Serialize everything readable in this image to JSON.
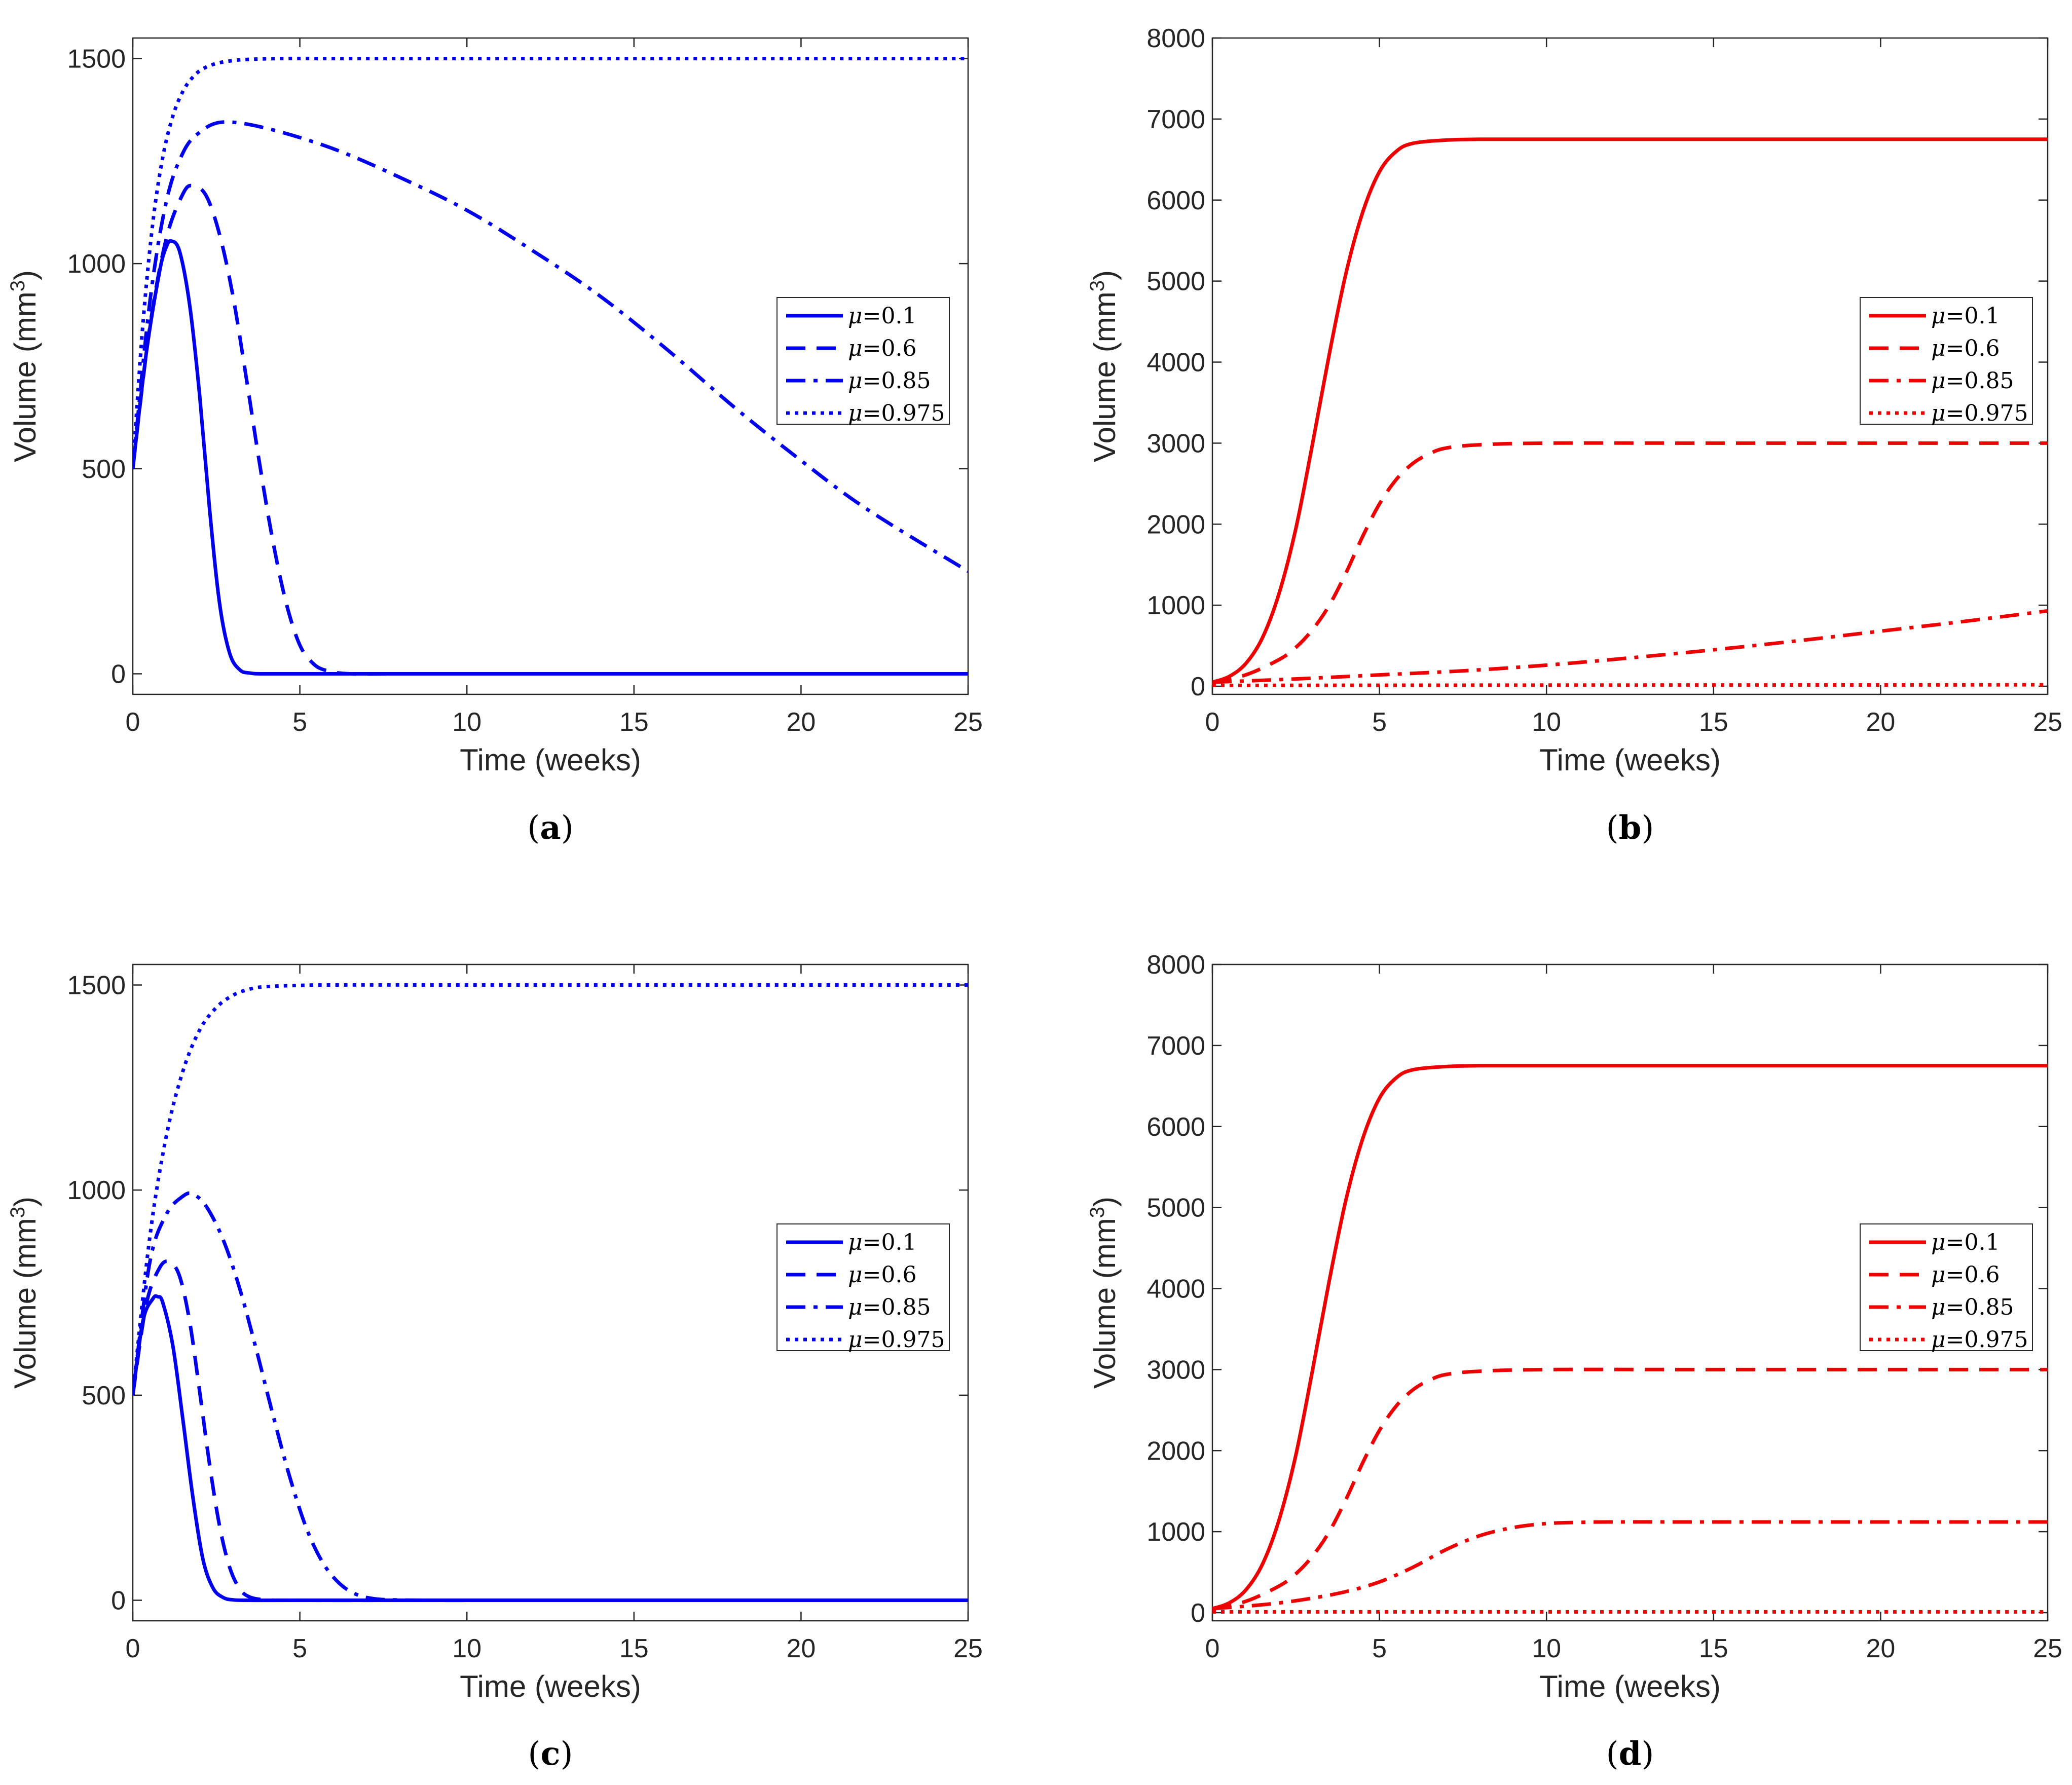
{
  "chart_data": [
    {
      "id": "a",
      "type": "line",
      "panel_label": "a",
      "color": "#0000ee",
      "xlabel": "Time (weeks)",
      "ylabel": "Volume (mm",
      "ylabel_sup": "3",
      "ylabel_end": ")",
      "xlim": [
        0,
        25
      ],
      "ylim": [
        -50,
        1550
      ],
      "xticks": [
        0,
        5,
        10,
        15,
        20,
        25
      ],
      "yticks": [
        0,
        500,
        1000,
        1500
      ],
      "grid": false,
      "legend_position": "right",
      "series": [
        {
          "name": "μ=0.1",
          "symbol": "μ",
          "label": "=0.1",
          "style": "solid",
          "x": [
            0,
            0.4,
            0.8,
            1.0,
            1.15,
            1.4,
            1.7,
            2.0,
            2.3,
            2.6,
            2.9,
            3.2,
            3.5,
            4.0,
            6,
            10,
            15,
            20,
            25
          ],
          "y": [
            500,
            780,
            980,
            1040,
            1055,
            1030,
            900,
            680,
            400,
            170,
            50,
            10,
            2,
            0,
            0,
            0,
            0,
            0,
            0
          ]
        },
        {
          "name": "μ=0.6",
          "symbol": "μ",
          "label": "=0.6",
          "style": "dashed",
          "x": [
            0,
            0.5,
            1.0,
            1.5,
            1.8,
            2.2,
            2.6,
            3.0,
            3.4,
            3.8,
            4.2,
            4.6,
            5.0,
            5.4,
            5.8,
            6.5,
            8,
            12,
            25
          ],
          "y": [
            500,
            840,
            1060,
            1170,
            1190,
            1165,
            1070,
            920,
            720,
            510,
            320,
            170,
            70,
            25,
            8,
            0,
            0,
            0,
            0
          ]
        },
        {
          "name": "μ=0.85",
          "symbol": "μ",
          "label": "=0.85",
          "style": "dashdot",
          "x": [
            0,
            0.5,
            1.0,
            1.5,
            2.0,
            2.7,
            4,
            6,
            8,
            10,
            12,
            14,
            16,
            18,
            20,
            22,
            25
          ],
          "y": [
            500,
            900,
            1150,
            1270,
            1320,
            1345,
            1330,
            1280,
            1210,
            1130,
            1030,
            920,
            790,
            650,
            520,
            400,
            250
          ]
        },
        {
          "name": "μ=0.975",
          "symbol": "μ",
          "label": "=0.975",
          "style": "dotted",
          "x": [
            0,
            0.3,
            0.6,
            0.9,
            1.2,
            1.5,
            1.8,
            2.1,
            2.5,
            3.0,
            3.5,
            4.5,
            6,
            10,
            15,
            20,
            25
          ],
          "y": [
            500,
            850,
            1100,
            1260,
            1360,
            1420,
            1455,
            1475,
            1488,
            1495,
            1498,
            1500,
            1500,
            1500,
            1500,
            1500,
            1500
          ]
        }
      ]
    },
    {
      "id": "b",
      "type": "line",
      "panel_label": "b",
      "color": "#ee0000",
      "xlabel": "Time (weeks)",
      "ylabel": "Volume (mm",
      "ylabel_sup": "3",
      "ylabel_end": ")",
      "xlim": [
        0,
        25
      ],
      "ylim": [
        -100,
        8000
      ],
      "xticks": [
        0,
        5,
        10,
        15,
        20,
        25
      ],
      "yticks": [
        0,
        1000,
        2000,
        3000,
        4000,
        5000,
        6000,
        7000,
        8000
      ],
      "grid": false,
      "legend_position": "upper-right",
      "series": [
        {
          "name": "μ=0.1",
          "symbol": "μ",
          "label": "=0.1",
          "style": "solid",
          "x": [
            0,
            0.5,
            1.0,
            1.5,
            2.0,
            2.5,
            3.0,
            3.5,
            4.0,
            4.5,
            5.0,
            5.5,
            6.0,
            7.0,
            8,
            10,
            15,
            20,
            25
          ],
          "y": [
            50,
            120,
            280,
            600,
            1150,
            1950,
            3000,
            4100,
            5100,
            5850,
            6350,
            6600,
            6700,
            6740,
            6750,
            6750,
            6750,
            6750,
            6750
          ]
        },
        {
          "name": "μ=0.6",
          "symbol": "μ",
          "label": "=0.6",
          "style": "dashed",
          "x": [
            0,
            1,
            2,
            2.5,
            3,
            3.5,
            4,
            4.5,
            5,
            5.5,
            6,
            6.5,
            7,
            8,
            10,
            15,
            20,
            25
          ],
          "y": [
            50,
            140,
            330,
            480,
            700,
            1000,
            1400,
            1850,
            2250,
            2550,
            2750,
            2870,
            2940,
            2980,
            3000,
            3000,
            3000,
            3000
          ]
        },
        {
          "name": "μ=0.85",
          "symbol": "μ",
          "label": "=0.85",
          "style": "dashdot",
          "x": [
            0,
            2.5,
            5,
            7.5,
            10,
            12.5,
            15,
            17.5,
            20,
            22.5,
            25
          ],
          "y": [
            50,
            90,
            140,
            190,
            260,
            350,
            450,
            560,
            680,
            800,
            930
          ]
        },
        {
          "name": "μ=0.975",
          "symbol": "μ",
          "label": "=0.975",
          "style": "dotted",
          "x": [
            0,
            5,
            10,
            15,
            20,
            25
          ],
          "y": [
            10,
            12,
            14,
            15,
            16,
            18
          ]
        }
      ]
    },
    {
      "id": "c",
      "type": "line",
      "panel_label": "c",
      "color": "#0000ee",
      "xlabel": "Time (weeks)",
      "ylabel": "Volume (mm",
      "ylabel_sup": "3",
      "ylabel_end": ")",
      "xlim": [
        0,
        25
      ],
      "ylim": [
        -50,
        1550
      ],
      "xticks": [
        0,
        5,
        10,
        15,
        20,
        25
      ],
      "yticks": [
        0,
        500,
        1000,
        1500
      ],
      "grid": false,
      "legend_position": "right",
      "series": [
        {
          "name": "μ=0.1",
          "symbol": "μ",
          "label": "=0.1",
          "style": "solid",
          "x": [
            0,
            0.3,
            0.6,
            0.75,
            0.9,
            1.2,
            1.5,
            1.8,
            2.1,
            2.4,
            2.7,
            3.0,
            3.5,
            5,
            10,
            15,
            20,
            25
          ],
          "y": [
            500,
            680,
            735,
            740,
            725,
            620,
            440,
            250,
            100,
            30,
            7,
            1,
            0,
            0,
            0,
            0,
            0,
            0
          ]
        },
        {
          "name": "μ=0.6",
          "symbol": "μ",
          "label": "=0.6",
          "style": "dashed",
          "x": [
            0,
            0.4,
            0.8,
            1.1,
            1.4,
            1.7,
            2.0,
            2.3,
            2.6,
            2.9,
            3.2,
            3.5,
            4.0,
            5,
            10,
            25
          ],
          "y": [
            500,
            720,
            810,
            825,
            790,
            680,
            510,
            330,
            180,
            80,
            28,
            8,
            1,
            0,
            0,
            0
          ]
        },
        {
          "name": "μ=0.85",
          "symbol": "μ",
          "label": "=0.85",
          "style": "dashdot",
          "x": [
            0,
            0.5,
            1.0,
            1.5,
            1.8,
            2.2,
            2.7,
            3.2,
            3.7,
            4.2,
            4.7,
            5.2,
            5.7,
            6.2,
            6.7,
            7.2,
            7.8,
            9,
            12,
            25
          ],
          "y": [
            500,
            820,
            940,
            985,
            990,
            960,
            880,
            760,
            610,
            450,
            300,
            175,
            90,
            40,
            14,
            4,
            1,
            0,
            0,
            0
          ]
        },
        {
          "name": "μ=0.975",
          "symbol": "μ",
          "label": "=0.975",
          "style": "dotted",
          "x": [
            0,
            0.5,
            1.0,
            1.5,
            2.0,
            2.5,
            3.0,
            3.5,
            4.0,
            5,
            6,
            10,
            15,
            20,
            25
          ],
          "y": [
            500,
            880,
            1130,
            1290,
            1390,
            1445,
            1475,
            1490,
            1496,
            1499,
            1500,
            1500,
            1500,
            1500,
            1500
          ]
        }
      ]
    },
    {
      "id": "d",
      "type": "line",
      "panel_label": "d",
      "color": "#ee0000",
      "xlabel": "Time (weeks)",
      "ylabel": "Volume (mm",
      "ylabel_sup": "3",
      "ylabel_end": ")",
      "xlim": [
        0,
        25
      ],
      "ylim": [
        -100,
        8000
      ],
      "xticks": [
        0,
        5,
        10,
        15,
        20,
        25
      ],
      "yticks": [
        0,
        1000,
        2000,
        3000,
        4000,
        5000,
        6000,
        7000,
        8000
      ],
      "grid": false,
      "legend_position": "upper-right",
      "series": [
        {
          "name": "μ=0.1",
          "symbol": "μ",
          "label": "=0.1",
          "style": "solid",
          "x": [
            0,
            0.5,
            1.0,
            1.5,
            2.0,
            2.5,
            3.0,
            3.5,
            4.0,
            4.5,
            5.0,
            5.5,
            6.0,
            7.0,
            8,
            10,
            15,
            20,
            25
          ],
          "y": [
            50,
            120,
            280,
            600,
            1150,
            1950,
            3000,
            4100,
            5100,
            5850,
            6350,
            6600,
            6700,
            6740,
            6750,
            6750,
            6750,
            6750,
            6750
          ]
        },
        {
          "name": "μ=0.6",
          "symbol": "μ",
          "label": "=0.6",
          "style": "dashed",
          "x": [
            0,
            1,
            2,
            2.5,
            3,
            3.5,
            4,
            4.5,
            5,
            5.5,
            6,
            6.5,
            7,
            8,
            10,
            15,
            20,
            25
          ],
          "y": [
            50,
            140,
            330,
            480,
            700,
            1000,
            1400,
            1850,
            2250,
            2550,
            2750,
            2870,
            2940,
            2980,
            3000,
            3000,
            3000,
            3000
          ]
        },
        {
          "name": "μ=0.85",
          "symbol": "μ",
          "label": "=0.85",
          "style": "dashdot",
          "x": [
            0,
            1,
            2,
            3,
            4,
            5,
            6,
            7,
            8,
            9,
            10,
            11,
            12,
            15,
            20,
            25
          ],
          "y": [
            50,
            80,
            120,
            180,
            260,
            380,
            560,
            780,
            950,
            1050,
            1100,
            1115,
            1120,
            1120,
            1120,
            1120
          ]
        },
        {
          "name": "μ=0.975",
          "symbol": "μ",
          "label": "=0.975",
          "style": "dotted",
          "x": [
            0,
            5,
            10,
            15,
            20,
            25
          ],
          "y": [
            10,
            10,
            10,
            10,
            10,
            10
          ]
        }
      ]
    }
  ]
}
